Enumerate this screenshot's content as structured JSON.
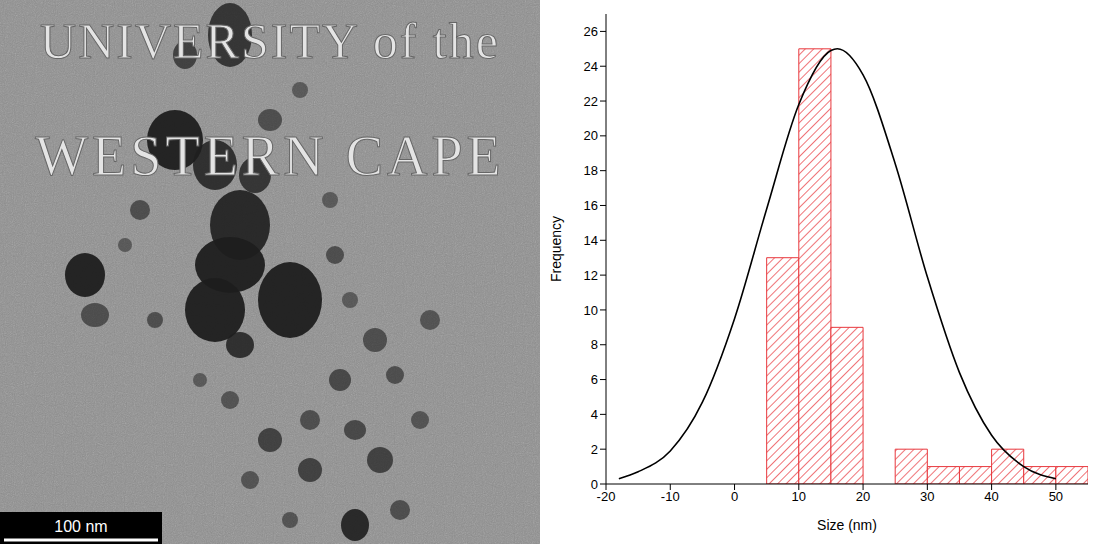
{
  "chart_data": {
    "type": "histogram",
    "bins": [
      5,
      10,
      15,
      20,
      25,
      30,
      35,
      40,
      45,
      50,
      55
    ],
    "counts": [
      13,
      25,
      9,
      0,
      2,
      1,
      1,
      2,
      1,
      1
    ],
    "color": "#e8383d",
    "fit_curve": {
      "x": [
        -18,
        -15,
        -10,
        -5,
        0,
        5,
        10,
        15,
        16,
        20,
        25,
        30,
        35,
        40,
        45,
        50
      ],
      "values": [
        0.3,
        0.7,
        1.9,
        4.7,
        9.5,
        15.8,
        21.8,
        24.9,
        25,
        23.5,
        18.4,
        11.9,
        6.4,
        2.8,
        1.0,
        0.3
      ],
      "color": "#000000"
    },
    "xlabel": "Size (nm)",
    "ylabel": "Frequency",
    "xlim": [
      -20,
      55
    ],
    "ylim": [
      0,
      27
    ],
    "xticks": [
      -20,
      -10,
      0,
      10,
      20,
      30,
      40,
      50
    ],
    "yticks": [
      0,
      2,
      4,
      6,
      8,
      10,
      12,
      14,
      16,
      18,
      20,
      22,
      24,
      26
    ]
  },
  "micrograph": {
    "scale_bar": "100 nm"
  },
  "watermark": [
    "UNIVERSITY of the",
    "WESTERN CAPE"
  ]
}
